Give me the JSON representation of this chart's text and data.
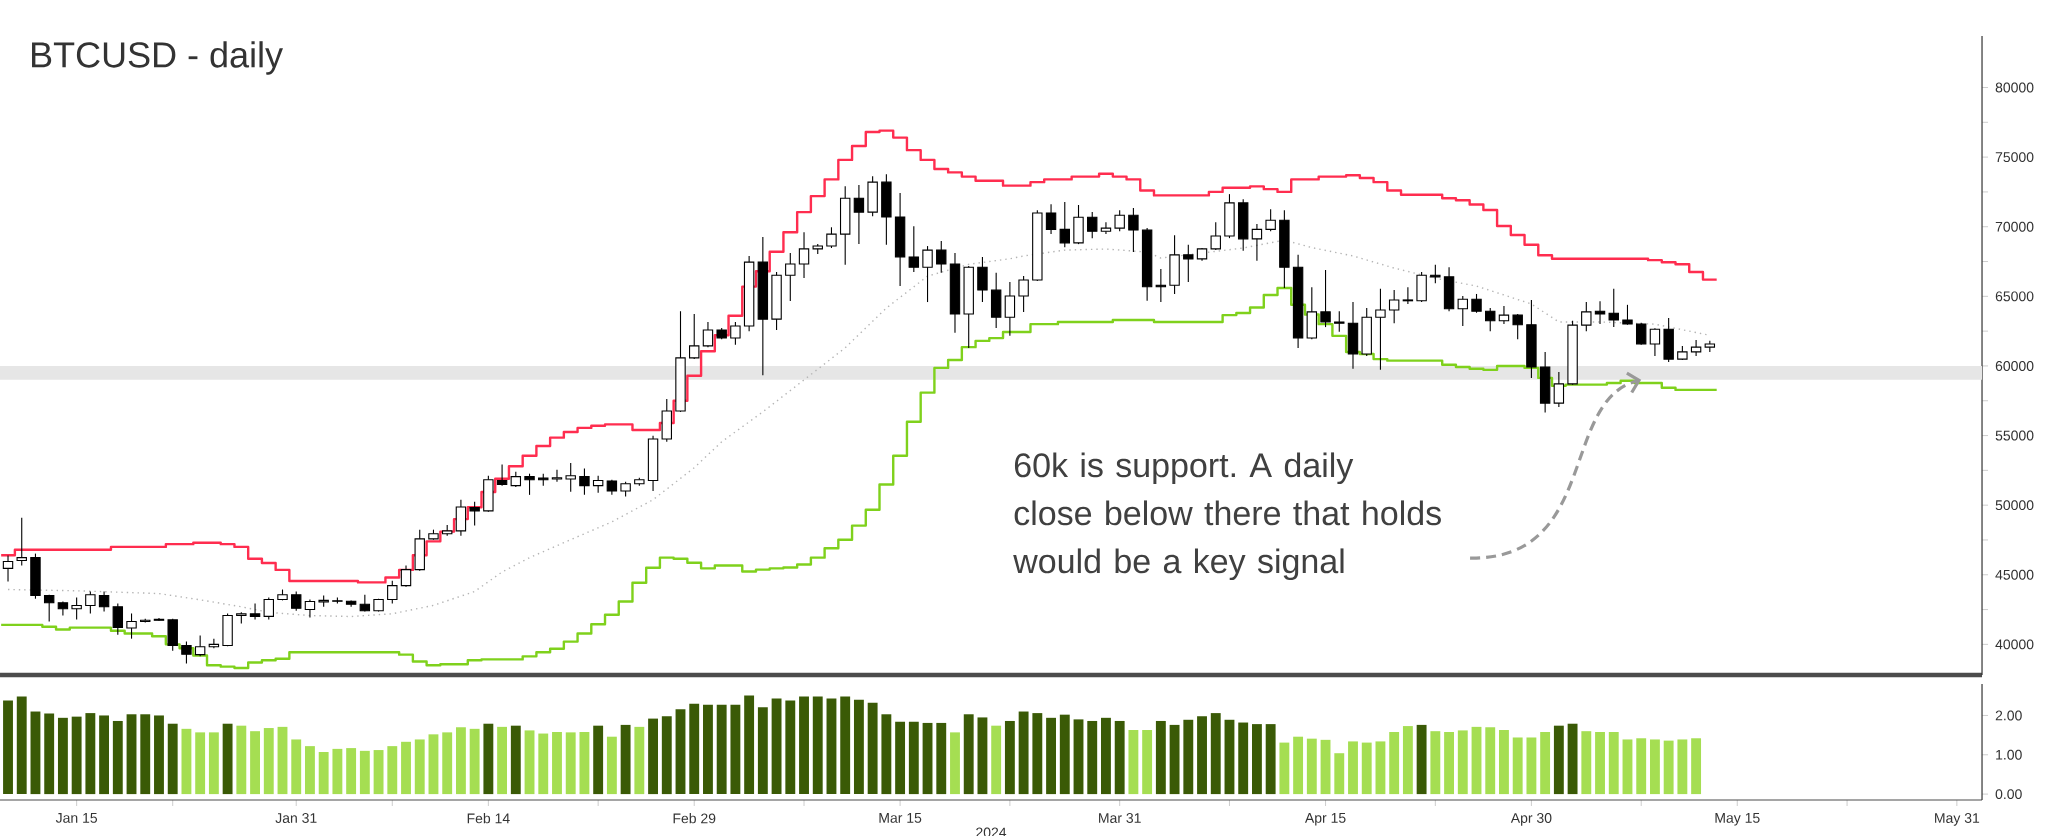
{
  "chart_data": [
    {
      "type": "candlestick",
      "title": "BTCUSD - daily",
      "x": [
        "2024-01-10",
        "2024-01-11",
        "2024-01-12",
        "2024-01-13",
        "2024-01-14",
        "2024-01-15",
        "2024-01-16",
        "2024-01-17",
        "2024-01-18",
        "2024-01-19",
        "2024-01-20",
        "2024-01-21",
        "2024-01-22",
        "2024-01-23",
        "2024-01-24",
        "2024-01-25",
        "2024-01-26",
        "2024-01-27",
        "2024-01-28",
        "2024-01-29",
        "2024-01-30",
        "2024-01-31",
        "2024-02-01",
        "2024-02-02",
        "2024-02-03",
        "2024-02-04",
        "2024-02-05",
        "2024-02-06",
        "2024-02-07",
        "2024-02-08",
        "2024-02-09",
        "2024-02-10",
        "2024-02-11",
        "2024-02-12",
        "2024-02-13",
        "2024-02-14",
        "2024-02-15",
        "2024-02-16",
        "2024-02-17",
        "2024-02-18",
        "2024-02-19",
        "2024-02-20",
        "2024-02-21",
        "2024-02-22",
        "2024-02-23",
        "2024-02-24",
        "2024-02-25",
        "2024-02-26",
        "2024-02-27",
        "2024-02-28",
        "2024-02-29",
        "2024-03-01",
        "2024-03-02",
        "2024-03-03",
        "2024-03-04",
        "2024-03-05",
        "2024-03-06",
        "2024-03-07",
        "2024-03-08",
        "2024-03-09",
        "2024-03-10",
        "2024-03-11",
        "2024-03-12",
        "2024-03-13",
        "2024-03-14",
        "2024-03-15",
        "2024-03-16",
        "2024-03-17",
        "2024-03-18",
        "2024-03-19",
        "2024-03-20",
        "2024-03-21",
        "2024-03-22",
        "2024-03-23",
        "2024-03-24",
        "2024-03-25",
        "2024-03-26",
        "2024-03-27",
        "2024-03-28",
        "2024-03-29",
        "2024-03-30",
        "2024-03-31",
        "2024-04-01",
        "2024-04-02",
        "2024-04-03",
        "2024-04-04",
        "2024-04-05",
        "2024-04-06",
        "2024-04-07",
        "2024-04-08",
        "2024-04-09",
        "2024-04-10",
        "2024-04-11",
        "2024-04-12",
        "2024-04-13",
        "2024-04-14",
        "2024-04-15",
        "2024-04-16",
        "2024-04-17",
        "2024-04-18",
        "2024-04-19",
        "2024-04-20",
        "2024-04-21",
        "2024-04-22",
        "2024-04-23",
        "2024-04-24",
        "2024-04-25",
        "2024-04-26",
        "2024-04-27",
        "2024-04-28",
        "2024-04-29",
        "2024-04-30",
        "2024-05-01",
        "2024-05-02",
        "2024-05-03",
        "2024-05-04",
        "2024-05-05",
        "2024-05-06",
        "2024-05-07",
        "2024-05-08",
        "2024-05-09",
        "2024-05-10",
        "2024-05-11",
        "2024-05-12",
        "2024-05-13"
      ],
      "ohlc": [
        [
          45460,
          46380,
          44510,
          45950
        ],
        [
          46030,
          49100,
          45660,
          46230
        ],
        [
          46230,
          46520,
          43280,
          43510
        ],
        [
          43510,
          43570,
          41640,
          42990
        ],
        [
          42990,
          43080,
          42070,
          42560
        ],
        [
          42560,
          43360,
          41780,
          42790
        ],
        [
          42790,
          43790,
          42220,
          43560
        ],
        [
          43510,
          43790,
          42360,
          42700
        ],
        [
          42700,
          42930,
          40700,
          41210
        ],
        [
          41180,
          42220,
          40410,
          41640
        ],
        [
          41640,
          41840,
          41580,
          41730
        ],
        [
          41730,
          41900,
          41670,
          41800
        ],
        [
          41760,
          41840,
          39550,
          39920
        ],
        [
          39920,
          40210,
          38630,
          39290
        ],
        [
          39260,
          40640,
          39150,
          39830
        ],
        [
          39830,
          40410,
          39720,
          40000
        ],
        [
          39920,
          42220,
          39860,
          42070
        ],
        [
          42070,
          42300,
          41500,
          42190
        ],
        [
          42190,
          42930,
          41790,
          42010
        ],
        [
          42010,
          43360,
          41790,
          43220
        ],
        [
          43220,
          43940,
          43160,
          43560
        ],
        [
          43560,
          43790,
          42420,
          42590
        ],
        [
          42500,
          43220,
          41930,
          43080
        ],
        [
          43050,
          43510,
          42700,
          43160
        ],
        [
          43130,
          43360,
          42930,
          43100
        ],
        [
          43100,
          43160,
          42700,
          42880
        ],
        [
          42880,
          43560,
          42360,
          42420
        ],
        [
          42420,
          43280,
          42360,
          43220
        ],
        [
          43220,
          44570,
          42930,
          44220
        ],
        [
          44220,
          45660,
          44140,
          45370
        ],
        [
          45370,
          48240,
          45290,
          47580
        ],
        [
          47580,
          48240,
          47520,
          47950
        ],
        [
          47950,
          48580,
          47810,
          48150
        ],
        [
          48150,
          50390,
          47810,
          49870
        ],
        [
          49820,
          50250,
          48530,
          49590
        ],
        [
          49590,
          52110,
          49530,
          51830
        ],
        [
          51770,
          52920,
          51400,
          51480
        ],
        [
          51400,
          52400,
          51300,
          52050
        ],
        [
          52050,
          52260,
          50740,
          51830
        ],
        [
          51940,
          52260,
          51400,
          51830
        ],
        [
          51880,
          52540,
          51680,
          51970
        ],
        [
          51880,
          53030,
          50970,
          52110
        ],
        [
          52060,
          52630,
          50740,
          51400
        ],
        [
          51400,
          52110,
          50890,
          51770
        ],
        [
          51740,
          51830,
          50740,
          51020
        ],
        [
          51020,
          51680,
          50620,
          51540
        ],
        [
          51540,
          51970,
          51400,
          51830
        ],
        [
          51770,
          54980,
          51020,
          54750
        ],
        [
          54750,
          57620,
          54550,
          56760
        ],
        [
          56760,
          63930,
          56700,
          60580
        ],
        [
          60580,
          63730,
          60490,
          61440
        ],
        [
          61440,
          63160,
          61350,
          62580
        ],
        [
          62580,
          62730,
          61920,
          62010
        ],
        [
          62010,
          63160,
          61520,
          62870
        ],
        [
          62870,
          67890,
          62500,
          67460
        ],
        [
          67460,
          69270,
          59340,
          63360
        ],
        [
          63360,
          66750,
          62580,
          66510
        ],
        [
          66510,
          68120,
          64660,
          67320
        ],
        [
          67320,
          69610,
          66320,
          68410
        ],
        [
          68410,
          68750,
          68040,
          68610
        ],
        [
          68610,
          69960,
          68470,
          69470
        ],
        [
          69470,
          72910,
          67260,
          72050
        ],
        [
          72050,
          73000,
          68750,
          71050
        ],
        [
          71050,
          73630,
          70760,
          73200
        ],
        [
          73200,
          73770,
          68700,
          70700
        ],
        [
          70700,
          72430,
          65740,
          67830
        ],
        [
          67830,
          70040,
          66750,
          67090
        ],
        [
          67090,
          68610,
          64590,
          68320
        ],
        [
          68320,
          68980,
          66690,
          67320
        ],
        [
          67320,
          68120,
          62390,
          63730
        ],
        [
          63730,
          67180,
          61290,
          67090
        ],
        [
          67090,
          67830,
          64590,
          65450
        ],
        [
          65450,
          66690,
          62730,
          63500
        ],
        [
          63500,
          66030,
          62160,
          65020
        ],
        [
          65020,
          66460,
          63880,
          66170
        ],
        [
          66170,
          71190,
          66110,
          70990
        ],
        [
          70990,
          71620,
          69470,
          69810
        ],
        [
          69810,
          71770,
          68520,
          68840
        ],
        [
          68840,
          71560,
          68750,
          70680
        ],
        [
          70680,
          71050,
          69180,
          69670
        ],
        [
          69670,
          70330,
          69470,
          69900
        ],
        [
          69900,
          71190,
          69670,
          70820
        ],
        [
          70820,
          71340,
          68180,
          69760
        ],
        [
          69760,
          69900,
          64680,
          65690
        ],
        [
          65800,
          66970,
          64590,
          65690
        ],
        [
          65800,
          69380,
          65170,
          67980
        ],
        [
          67980,
          68700,
          66030,
          67690
        ],
        [
          67690,
          68470,
          67550,
          68410
        ],
        [
          68410,
          70330,
          68320,
          69330
        ],
        [
          69330,
          72340,
          69180,
          71710
        ],
        [
          71710,
          71970,
          68270,
          69130
        ],
        [
          69130,
          70190,
          67550,
          69810
        ],
        [
          69810,
          71250,
          69670,
          70470
        ],
        [
          70470,
          71190,
          65600,
          67090
        ],
        [
          67090,
          67980,
          61290,
          62010
        ],
        [
          62010,
          65660,
          61920,
          63880
        ],
        [
          63880,
          66890,
          62790,
          63160
        ],
        [
          63160,
          63930,
          62450,
          63070
        ],
        [
          63070,
          64590,
          59800,
          60860
        ],
        [
          60860,
          64160,
          60720,
          63500
        ],
        [
          63500,
          65540,
          59720,
          64020
        ],
        [
          64020,
          65450,
          63070,
          64740
        ],
        [
          64740,
          65660,
          64450,
          64680
        ],
        [
          64680,
          66750,
          64590,
          66510
        ],
        [
          66510,
          67260,
          65940,
          66400
        ],
        [
          66400,
          67090,
          63930,
          64110
        ],
        [
          64110,
          65020,
          62870,
          64790
        ],
        [
          64790,
          65170,
          63820,
          63930
        ],
        [
          63930,
          64160,
          62500,
          63250
        ],
        [
          63250,
          64310,
          63020,
          63650
        ],
        [
          63650,
          63730,
          61920,
          62960
        ],
        [
          62960,
          64740,
          59140,
          59920
        ],
        [
          59920,
          61010,
          56650,
          57330
        ],
        [
          57330,
          59570,
          57050,
          58710
        ],
        [
          58710,
          63250,
          58650,
          62930
        ],
        [
          62930,
          64590,
          62500,
          63880
        ],
        [
          63930,
          64650,
          63020,
          63730
        ],
        [
          63790,
          65540,
          62790,
          63300
        ],
        [
          63300,
          64390,
          62960,
          63010
        ],
        [
          63010,
          63100,
          61520,
          61580
        ],
        [
          61580,
          62700,
          60720,
          62640
        ],
        [
          62640,
          63450,
          60290,
          60490
        ],
        [
          60490,
          61440,
          60430,
          61010
        ],
        [
          61010,
          61870,
          60720,
          61350
        ],
        [
          61350,
          61810,
          61010,
          61580
        ]
      ],
      "series": [
        {
          "type": "step",
          "color": "#ff2d4f",
          "x": [
            "2024-01-09T12:00",
            "2024-01-10T12:00",
            "2024-01-17T12:00",
            "2024-01-21T12:00",
            "2024-01-23T12:00",
            "2024-01-25T12:00",
            "2024-01-26T12:00",
            "2024-01-27T12:00",
            "2024-01-28T12:00",
            "2024-01-29T12:00",
            "2024-01-30T12:00",
            "2024-02-04T12:00",
            "2024-02-06T12:00",
            "2024-02-07T12:00",
            "2024-02-08T12:00",
            "2024-02-09T12:00",
            "2024-02-10T12:00",
            "2024-02-11T12:00",
            "2024-02-12T12:00",
            "2024-02-13T12:00",
            "2024-02-14T12:00",
            "2024-02-15T12:00",
            "2024-02-16T12:00",
            "2024-02-17T12:00",
            "2024-02-18T12:00",
            "2024-02-19T12:00",
            "2024-02-20T12:00",
            "2024-02-21T12:00",
            "2024-02-22T12:00",
            "2024-02-24T12:00",
            "2024-02-26T12:00",
            "2024-02-27T12:00",
            "2024-02-28T12:00",
            "2024-02-29T12:00",
            "2024-03-01T12:00",
            "2024-03-02T12:00",
            "2024-03-03T12:00",
            "2024-03-04T12:00",
            "2024-03-05T12:00",
            "2024-03-06T12:00",
            "2024-03-07T12:00",
            "2024-03-08T12:00",
            "2024-03-09T12:00",
            "2024-03-10T12:00",
            "2024-03-11T12:00",
            "2024-03-12T12:00",
            "2024-03-13T12:00",
            "2024-03-14T12:00",
            "2024-03-15T12:00",
            "2024-03-16T12:00",
            "2024-03-17T12:00",
            "2024-03-18T12:00",
            "2024-03-19T12:00",
            "2024-03-20T12:00",
            "2024-03-22T12:00",
            "2024-03-24T12:00",
            "2024-03-25T12:00",
            "2024-03-27T12:00",
            "2024-03-29T12:00",
            "2024-03-30T12:00",
            "2024-03-31T12:00",
            "2024-04-01T12:00",
            "2024-04-02T12:00",
            "2024-04-06T12:00",
            "2024-04-07T12:00",
            "2024-04-09T12:00",
            "2024-04-10T12:00",
            "2024-04-11T12:00",
            "2024-04-12T12:00",
            "2024-04-14T12:00",
            "2024-04-16T12:00",
            "2024-04-17T12:00",
            "2024-04-18T12:00",
            "2024-04-19T12:00",
            "2024-04-20T12:00",
            "2024-04-23T12:00",
            "2024-04-24T12:00",
            "2024-04-25T12:00",
            "2024-04-26T12:00",
            "2024-04-27T12:00",
            "2024-04-28T12:00",
            "2024-04-29T12:00",
            "2024-04-30T12:00",
            "2024-05-01T12:00",
            "2024-05-08T12:00",
            "2024-05-09T12:00",
            "2024-05-10T12:00",
            "2024-05-11T12:00",
            "2024-05-12T12:00",
            "2024-05-13T12:00"
          ],
          "values": [
            46400,
            46800,
            47000,
            47200,
            47300,
            47200,
            47000,
            46150,
            45850,
            45350,
            44550,
            44450,
            44800,
            45350,
            46400,
            47400,
            48100,
            49000,
            49850,
            50950,
            51900,
            52800,
            53550,
            54250,
            54850,
            55250,
            55550,
            55700,
            55800,
            55400,
            55900,
            57500,
            59300,
            61050,
            62200,
            63600,
            65700,
            66800,
            68200,
            69600,
            71050,
            72200,
            73400,
            74800,
            75800,
            76800,
            76900,
            76400,
            75500,
            74800,
            74150,
            73900,
            73600,
            73300,
            72950,
            73200,
            73400,
            73600,
            73800,
            73600,
            73400,
            72600,
            72250,
            72500,
            72800,
            72900,
            72700,
            72500,
            73400,
            73600,
            73700,
            73500,
            73200,
            72600,
            72300,
            72050,
            71900,
            71600,
            71200,
            70050,
            69400,
            68700,
            67950,
            67700,
            67600,
            67450,
            67300,
            66750,
            66200,
            66200
          ]
        },
        {
          "type": "step",
          "color": "#7fd11c",
          "x": [
            "2024-01-09T12:00",
            "2024-01-12T12:00",
            "2024-01-13T12:00",
            "2024-01-14T12:00",
            "2024-01-17T12:00",
            "2024-01-18T12:00",
            "2024-01-20T12:00",
            "2024-01-21T12:00",
            "2024-01-22T12:00",
            "2024-01-23T12:00",
            "2024-01-24T12:00",
            "2024-01-25T12:00",
            "2024-01-26T12:00",
            "2024-01-27T12:00",
            "2024-01-28T12:00",
            "2024-01-29T12:00",
            "2024-01-30T12:00",
            "2024-02-07T12:00",
            "2024-02-08T12:00",
            "2024-02-09T12:00",
            "2024-02-10T12:00",
            "2024-02-12T12:00",
            "2024-02-13T12:00",
            "2024-02-16T12:00",
            "2024-02-17T12:00",
            "2024-02-18T12:00",
            "2024-02-19T12:00",
            "2024-02-20T12:00",
            "2024-02-21T12:00",
            "2024-02-22T12:00",
            "2024-02-23T12:00",
            "2024-02-24T12:00",
            "2024-02-25T12:00",
            "2024-02-26T12:00",
            "2024-02-27T12:00",
            "2024-02-28T12:00",
            "2024-02-29T12:00",
            "2024-03-01T12:00",
            "2024-03-03T12:00",
            "2024-03-04T12:00",
            "2024-03-05T12:00",
            "2024-03-06T12:00",
            "2024-03-07T12:00",
            "2024-03-08T12:00",
            "2024-03-09T12:00",
            "2024-03-10T12:00",
            "2024-03-11T12:00",
            "2024-03-12T12:00",
            "2024-03-13T12:00",
            "2024-03-14T12:00",
            "2024-03-15T12:00",
            "2024-03-16T12:00",
            "2024-03-17T12:00",
            "2024-03-18T12:00",
            "2024-03-19T12:00",
            "2024-03-20T12:00",
            "2024-03-21T12:00",
            "2024-03-22T12:00",
            "2024-03-24T12:00",
            "2024-03-26T12:00",
            "2024-03-30T12:00",
            "2024-04-02T12:00",
            "2024-04-07T12:00",
            "2024-04-08T12:00",
            "2024-04-09T12:00",
            "2024-04-10T12:00",
            "2024-04-11T12:00",
            "2024-04-12T12:00",
            "2024-04-13T12:00",
            "2024-04-14T12:00",
            "2024-04-15T12:00",
            "2024-04-16T12:00",
            "2024-04-17T12:00",
            "2024-04-18T12:00",
            "2024-04-19T12:00",
            "2024-04-23T12:00",
            "2024-04-24T12:00",
            "2024-04-25T12:00",
            "2024-04-26T12:00",
            "2024-04-27T12:00",
            "2024-04-29T12:00",
            "2024-04-30T12:00",
            "2024-05-01T12:00",
            "2024-05-02T12:00",
            "2024-05-05T12:00",
            "2024-05-06T12:00",
            "2024-05-07T12:00",
            "2024-05-09T12:00",
            "2024-05-10T12:00",
            "2024-05-13T12:00"
          ],
          "values": [
            41400,
            41270,
            41070,
            41200,
            40980,
            40780,
            40580,
            40000,
            39720,
            39200,
            38500,
            38400,
            38300,
            38700,
            38860,
            38970,
            39430,
            39260,
            38770,
            38500,
            38570,
            38860,
            38920,
            39140,
            39430,
            39690,
            40200,
            40780,
            41440,
            42130,
            43080,
            44430,
            45500,
            46230,
            46150,
            45860,
            45460,
            45660,
            45230,
            45370,
            45460,
            45520,
            45740,
            46230,
            46900,
            47520,
            48530,
            49670,
            51480,
            53550,
            55990,
            58080,
            59860,
            60430,
            61350,
            61800,
            62000,
            62440,
            63000,
            63160,
            63300,
            63160,
            63650,
            63800,
            64200,
            65100,
            65600,
            64400,
            63700,
            63000,
            62160,
            61000,
            60860,
            60490,
            60380,
            60090,
            59920,
            59800,
            59720,
            60000,
            59860,
            59140,
            58570,
            58660,
            58770,
            58940,
            58770,
            58430,
            58280,
            58280
          ]
        },
        {
          "type": "line",
          "color": "#b4b4b4",
          "line_style": "dotted",
          "x": [
            "2024-01-10",
            "2024-01-15",
            "2024-01-21",
            "2024-01-24",
            "2024-01-27",
            "2024-01-29",
            "2024-02-01",
            "2024-02-04",
            "2024-02-07",
            "2024-02-10",
            "2024-02-13",
            "2024-02-15",
            "2024-02-17",
            "2024-02-20",
            "2024-02-23",
            "2024-02-26",
            "2024-02-29",
            "2024-03-02",
            "2024-03-05",
            "2024-03-08",
            "2024-03-11",
            "2024-03-14",
            "2024-03-17",
            "2024-03-20",
            "2024-03-23",
            "2024-03-24",
            "2024-03-27",
            "2024-03-30",
            "2024-04-02",
            "2024-04-03",
            "2024-04-09",
            "2024-04-12",
            "2024-04-14",
            "2024-04-17",
            "2024-04-20",
            "2024-04-23",
            "2024-04-26",
            "2024-04-30",
            "2024-05-02",
            "2024-05-05",
            "2024-05-09",
            "2024-05-13"
          ],
          "values": [
            43940,
            43850,
            43650,
            43200,
            42700,
            42300,
            42070,
            42000,
            42200,
            42800,
            43800,
            45200,
            46230,
            47520,
            48800,
            50390,
            52690,
            54550,
            56700,
            59000,
            61300,
            64160,
            66450,
            67300,
            67700,
            67900,
            68320,
            68400,
            68180,
            67750,
            68470,
            69040,
            68500,
            67900,
            67030,
            66300,
            65740,
            64450,
            63160,
            63160,
            63000,
            62200
          ]
        }
      ],
      "xlim": [
        "2024-01-09T10:00",
        "2024-06-01T20:00"
      ],
      "ylim": [
        37800,
        83700
      ],
      "yticks": [
        40000,
        {
          "value": 42500,
          "label": null
        },
        45000,
        {
          "value": 47500,
          "label": null
        },
        50000,
        {
          "value": 52500,
          "label": null
        },
        55000,
        {
          "value": 57500,
          "label": null
        },
        60000,
        {
          "value": 62500,
          "label": null
        },
        65000,
        {
          "value": 67500,
          "label": null
        },
        70000,
        {
          "value": 72500,
          "label": null
        },
        75000,
        {
          "value": 77500,
          "label": null
        },
        80000
      ],
      "tick_labels": "y",
      "bands": [
        {
          "axis": "y",
          "from": 59000,
          "to": 60000,
          "color": "#e6e6e6"
        }
      ],
      "annotations": [
        {
          "text": "60k is support. A daily close below there that holds would be a key signal",
          "x": "2024-05-08",
          "y": 59000
        }
      ]
    },
    {
      "type": "bar",
      "xlabel": "2024",
      "x": [
        "2024-01-10",
        "2024-01-11",
        "2024-01-12",
        "2024-01-13",
        "2024-01-14",
        "2024-01-15",
        "2024-01-16",
        "2024-01-17",
        "2024-01-18",
        "2024-01-19",
        "2024-01-20",
        "2024-01-21",
        "2024-01-22",
        "2024-01-23",
        "2024-01-24",
        "2024-01-25",
        "2024-01-26",
        "2024-01-27",
        "2024-01-28",
        "2024-01-29",
        "2024-01-30",
        "2024-01-31",
        "2024-02-01",
        "2024-02-02",
        "2024-02-03",
        "2024-02-04",
        "2024-02-05",
        "2024-02-06",
        "2024-02-07",
        "2024-02-08",
        "2024-02-09",
        "2024-02-10",
        "2024-02-11",
        "2024-02-12",
        "2024-02-13",
        "2024-02-14",
        "2024-02-15",
        "2024-02-16",
        "2024-02-17",
        "2024-02-18",
        "2024-02-19",
        "2024-02-20",
        "2024-02-21",
        "2024-02-22",
        "2024-02-23",
        "2024-02-24",
        "2024-02-25",
        "2024-02-26",
        "2024-02-27",
        "2024-02-28",
        "2024-02-29",
        "2024-03-01",
        "2024-03-02",
        "2024-03-03",
        "2024-03-04",
        "2024-03-05",
        "2024-03-06",
        "2024-03-07",
        "2024-03-08",
        "2024-03-09",
        "2024-03-10",
        "2024-03-11",
        "2024-03-12",
        "2024-03-13",
        "2024-03-14",
        "2024-03-15",
        "2024-03-16",
        "2024-03-17",
        "2024-03-18",
        "2024-03-19",
        "2024-03-20",
        "2024-03-21",
        "2024-03-22",
        "2024-03-23",
        "2024-03-24",
        "2024-03-25",
        "2024-03-26",
        "2024-03-27",
        "2024-03-28",
        "2024-03-29",
        "2024-03-30",
        "2024-03-31",
        "2024-04-01",
        "2024-04-02",
        "2024-04-03",
        "2024-04-04",
        "2024-04-05",
        "2024-04-06",
        "2024-04-07",
        "2024-04-08",
        "2024-04-09",
        "2024-04-10",
        "2024-04-11",
        "2024-04-12",
        "2024-04-13",
        "2024-04-14",
        "2024-04-15",
        "2024-04-16",
        "2024-04-17",
        "2024-04-18",
        "2024-04-19",
        "2024-04-20",
        "2024-04-21",
        "2024-04-22",
        "2024-04-23",
        "2024-04-24",
        "2024-04-25",
        "2024-04-26",
        "2024-04-27",
        "2024-04-28",
        "2024-04-29",
        "2024-04-30",
        "2024-05-01",
        "2024-05-02",
        "2024-05-03",
        "2024-05-04",
        "2024-05-05",
        "2024-05-06",
        "2024-05-07",
        "2024-05-08",
        "2024-05-09",
        "2024-05-10",
        "2024-05-11",
        "2024-05-12"
      ],
      "values": [
        2.38,
        2.48,
        2.1,
        2.05,
        1.94,
        1.97,
        2.06,
        2.0,
        1.86,
        2.03,
        2.03,
        2.0,
        1.79,
        1.66,
        1.57,
        1.57,
        1.79,
        1.74,
        1.6,
        1.68,
        1.71,
        1.39,
        1.22,
        1.07,
        1.15,
        1.17,
        1.1,
        1.12,
        1.22,
        1.33,
        1.39,
        1.52,
        1.57,
        1.7,
        1.66,
        1.79,
        1.71,
        1.74,
        1.62,
        1.54,
        1.58,
        1.57,
        1.58,
        1.74,
        1.46,
        1.76,
        1.71,
        1.92,
        1.98,
        2.16,
        2.3,
        2.27,
        2.27,
        2.27,
        2.51,
        2.21,
        2.43,
        2.38,
        2.48,
        2.48,
        2.43,
        2.48,
        2.4,
        2.32,
        2.03,
        1.84,
        1.84,
        1.81,
        1.81,
        1.57,
        2.03,
        1.95,
        1.74,
        1.86,
        2.1,
        2.06,
        1.94,
        2.02,
        1.9,
        1.86,
        1.94,
        1.86,
        1.63,
        1.63,
        1.86,
        1.76,
        1.89,
        1.98,
        2.06,
        1.89,
        1.82,
        1.78,
        1.78,
        1.31,
        1.46,
        1.41,
        1.38,
        1.04,
        1.34,
        1.31,
        1.34,
        1.58,
        1.73,
        1.76,
        1.6,
        1.58,
        1.62,
        1.71,
        1.7,
        1.63,
        1.44,
        1.44,
        1.58,
        1.74,
        1.79,
        1.6,
        1.58,
        1.58,
        1.39,
        1.42,
        1.39,
        1.36,
        1.39,
        1.42
      ],
      "colors": [
        "#3a5a06",
        "#3a5a06",
        "#3a5a06",
        "#3a5a06",
        "#3a5a06",
        "#3a5a06",
        "#3a5a06",
        "#3a5a06",
        "#3a5a06",
        "#3a5a06",
        "#3a5a06",
        "#3a5a06",
        "#3a5a06",
        "#a5de52",
        "#a5de52",
        "#a5de52",
        "#3a5a06",
        "#a5de52",
        "#a5de52",
        "#a5de52",
        "#a5de52",
        "#a5de52",
        "#a5de52",
        "#a5de52",
        "#a5de52",
        "#a5de52",
        "#a5de52",
        "#a5de52",
        "#a5de52",
        "#a5de52",
        "#a5de52",
        "#a5de52",
        "#a5de52",
        "#a5de52",
        "#a5de52",
        "#3a5a06",
        "#a5de52",
        "#3a5a06",
        "#a5de52",
        "#a5de52",
        "#a5de52",
        "#a5de52",
        "#a5de52",
        "#3a5a06",
        "#a5de52",
        "#3a5a06",
        "#a5de52",
        "#3a5a06",
        "#3a5a06",
        "#3a5a06",
        "#3a5a06",
        "#3a5a06",
        "#3a5a06",
        "#3a5a06",
        "#3a5a06",
        "#3a5a06",
        "#3a5a06",
        "#3a5a06",
        "#3a5a06",
        "#3a5a06",
        "#3a5a06",
        "#3a5a06",
        "#3a5a06",
        "#3a5a06",
        "#3a5a06",
        "#3a5a06",
        "#3a5a06",
        "#3a5a06",
        "#3a5a06",
        "#a5de52",
        "#3a5a06",
        "#3a5a06",
        "#a5de52",
        "#3a5a06",
        "#3a5a06",
        "#3a5a06",
        "#3a5a06",
        "#3a5a06",
        "#3a5a06",
        "#3a5a06",
        "#3a5a06",
        "#3a5a06",
        "#a5de52",
        "#a5de52",
        "#3a5a06",
        "#3a5a06",
        "#3a5a06",
        "#3a5a06",
        "#3a5a06",
        "#3a5a06",
        "#3a5a06",
        "#3a5a06",
        "#3a5a06",
        "#a5de52",
        "#a5de52",
        "#a5de52",
        "#a5de52",
        "#a5de52",
        "#a5de52",
        "#a5de52",
        "#a5de52",
        "#a5de52",
        "#a5de52",
        "#3a5a06",
        "#a5de52",
        "#a5de52",
        "#a5de52",
        "#a5de52",
        "#a5de52",
        "#a5de52",
        "#a5de52",
        "#a5de52",
        "#a5de52",
        "#3a5a06",
        "#3a5a06",
        "#a5de52",
        "#a5de52",
        "#a5de52",
        "#a5de52",
        "#a5de52",
        "#a5de52",
        "#a5de52",
        "#a5de52",
        "#a5de52"
      ],
      "xlim": [
        "2024-01-09T10:00",
        "2024-06-01T20:00"
      ],
      "xticks": [
        {
          "value": "2024-01-15",
          "label": "Jan 15"
        },
        {
          "value": "2024-01-22",
          "label": null
        },
        {
          "value": "2024-01-31",
          "label": "Jan 31"
        },
        {
          "value": "2024-02-07",
          "label": null
        },
        {
          "value": "2024-02-14",
          "label": "Feb 14"
        },
        {
          "value": "2024-02-22",
          "label": null
        },
        {
          "value": "2024-02-29",
          "label": "Feb 29"
        },
        {
          "value": "2024-03-08",
          "label": null
        },
        {
          "value": "2024-03-15",
          "label": "Mar 15"
        },
        {
          "value": "2024-03-23",
          "label": null
        },
        {
          "value": "2024-03-31",
          "label": "Mar 31"
        },
        {
          "value": "2024-04-08",
          "label": null
        },
        {
          "value": "2024-04-15",
          "label": "Apr 15"
        },
        {
          "value": "2024-04-23",
          "label": null
        },
        {
          "value": "2024-04-30",
          "label": "Apr 30"
        },
        {
          "value": "2024-05-08",
          "label": null
        },
        {
          "value": "2024-05-15",
          "label": "May 15"
        },
        {
          "value": "2024-05-23",
          "label": null
        },
        {
          "value": "2024-05-31",
          "label": "May 31"
        }
      ],
      "ylim": [
        -0.15,
        2.8
      ],
      "yticks": [
        {
          "value": 0,
          "label": "0.00"
        },
        {
          "value": 1,
          "label": "1.00"
        },
        {
          "value": 2,
          "label": "2.00"
        }
      ]
    }
  ]
}
